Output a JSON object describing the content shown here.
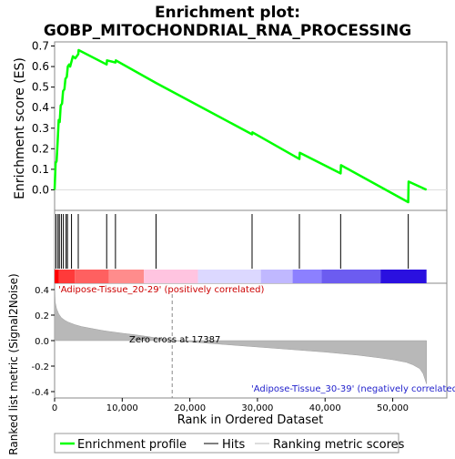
{
  "chart_data": {
    "type": "line",
    "title_line1": "Enrichment plot:",
    "title_line2": "GOBP_MITOCHONDRIAL_RNA_PROCESSING",
    "es_panel": {
      "ylabel": "Enrichment score (ES)",
      "ylim": [
        -0.1,
        0.72
      ],
      "yticks": [
        0.0,
        0.1,
        0.2,
        0.3,
        0.4,
        0.5,
        0.6,
        0.7
      ],
      "ytick_labels": [
        "0.0",
        "0.1",
        "0.2",
        "0.3",
        "0.4",
        "0.5",
        "0.6",
        "0.7"
      ],
      "line_color": "#00ff00",
      "series": [
        {
          "x": [
            0,
            150,
            300,
            450,
            600,
            750,
            900,
            1100,
            1250,
            1450,
            1600,
            1800,
            1950,
            2150,
            2300,
            2700,
            3050,
            3500,
            3550,
            7700,
            7750,
            9000,
            9050,
            15000,
            29200,
            29250,
            36200,
            36250,
            42300,
            42350,
            52300,
            52350,
            55000
          ],
          "y": [
            0.0,
            0.13,
            0.14,
            0.23,
            0.34,
            0.33,
            0.41,
            0.42,
            0.48,
            0.49,
            0.54,
            0.55,
            0.6,
            0.61,
            0.6,
            0.65,
            0.64,
            0.66,
            0.68,
            0.61,
            0.63,
            0.62,
            0.63,
            0.52,
            0.27,
            0.28,
            0.15,
            0.18,
            0.08,
            0.12,
            -0.06,
            0.04,
            0.0
          ]
        }
      ]
    },
    "hits": {
      "x": [
        200,
        500,
        700,
        1000,
        1300,
        1700,
        1900,
        2500,
        3500,
        7700,
        9000,
        15000,
        29200,
        36200,
        42300,
        52300
      ],
      "color": "#000000"
    },
    "ranked_panel": {
      "ylabel": "Ranked list metric (Signal2Noise)",
      "xlabel": "Rank in Ordered Dataset",
      "xlim": [
        0,
        58000
      ],
      "ylim": [
        -0.45,
        0.45
      ],
      "xticks": [
        0,
        10000,
        20000,
        30000,
        40000,
        50000
      ],
      "xtick_labels": [
        "0",
        "10,000",
        "20,000",
        "30,000",
        "40,000",
        "50,000"
      ],
      "yticks": [
        -0.4,
        -0.2,
        0.0,
        0.2,
        0.4
      ],
      "ytick_labels": [
        "-0.4",
        "-0.2",
        "0.0",
        "0.2",
        "0.4"
      ],
      "zero_cross_label": "Zero cross at 17387",
      "zero_cross": 17387,
      "n_genes": 55000,
      "metric_curve": {
        "x": [
          0,
          100,
          300,
          600,
          1000,
          1500,
          2000,
          3000,
          4000,
          5000,
          6000,
          7000,
          8000,
          9000,
          10000,
          12000,
          14000,
          16000,
          17387,
          20000,
          25000,
          30000,
          35000,
          40000,
          45000,
          48000,
          50000,
          52000,
          53000,
          54000,
          54500,
          55000
        ],
        "y": [
          0.45,
          0.3,
          0.25,
          0.21,
          0.18,
          0.16,
          0.145,
          0.125,
          0.11,
          0.1,
          0.09,
          0.08,
          0.072,
          0.065,
          0.058,
          0.045,
          0.03,
          0.012,
          0.0,
          -0.01,
          -0.03,
          -0.05,
          -0.07,
          -0.09,
          -0.115,
          -0.135,
          -0.15,
          -0.17,
          -0.19,
          -0.22,
          -0.26,
          -0.34
        ]
      }
    },
    "gradient_bar": {
      "positive_label": "'Adipose-Tissue_20-29' (positively correlated)",
      "negative_label": "'Adipose-Tissue_30-39' (negatively correlated)",
      "segments": [
        {
          "x0": 0,
          "x1": 600,
          "color": "#ff0000"
        },
        {
          "x0": 600,
          "x1": 3000,
          "color": "#ff3a3a"
        },
        {
          "x0": 3000,
          "x1": 8000,
          "color": "#ff6060"
        },
        {
          "x0": 8000,
          "x1": 13200,
          "color": "#ff8c8c"
        },
        {
          "x0": 13200,
          "x1": 21200,
          "color": "#ffc4e0"
        },
        {
          "x0": 21200,
          "x1": 30500,
          "color": "#dcd8ff"
        },
        {
          "x0": 30500,
          "x1": 35200,
          "color": "#c0b8ff"
        },
        {
          "x0": 35200,
          "x1": 39500,
          "color": "#8c80ff"
        },
        {
          "x0": 39500,
          "x1": 48200,
          "color": "#6c5cf0"
        },
        {
          "x0": 48200,
          "x1": 55000,
          "color": "#2a10e0"
        }
      ]
    },
    "legend": {
      "items": [
        {
          "label": "Enrichment profile",
          "color": "#00ff00",
          "kind": "line"
        },
        {
          "label": "Hits",
          "color": "#000000",
          "kind": "line"
        },
        {
          "label": "Ranking metric scores",
          "color": "#bbbbbb",
          "kind": "line"
        }
      ]
    }
  }
}
